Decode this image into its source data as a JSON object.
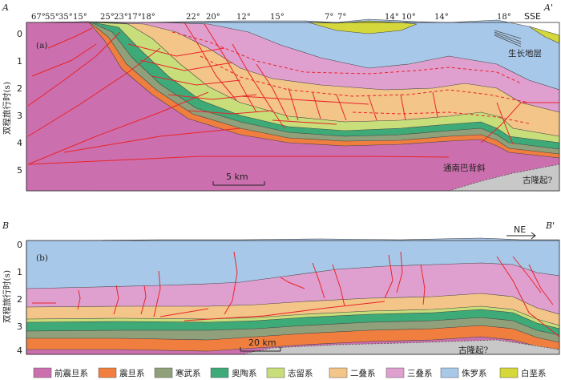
{
  "panel_a": {
    "tag": "(a)",
    "left_label": "A",
    "right_label": "A'",
    "direction": "SSE",
    "dips": [
      "67°",
      "55°",
      "35°",
      "15°",
      "25°",
      "23°",
      "17°",
      "18°",
      "22°",
      "20°",
      "12°",
      "15°",
      "7°",
      "7°",
      "14°",
      "10°",
      "14°",
      "18°"
    ],
    "y_axis_label": "双程旅行时(s)",
    "y_ticks": [
      "0",
      "1",
      "2",
      "3",
      "4",
      "5"
    ],
    "scale_bar": "5 km",
    "annotations": {
      "growth_strata": "生长地层",
      "anticline": "通南巴背斜",
      "paleo_uplift": "古隆起?"
    }
  },
  "panel_b": {
    "tag": "(b)",
    "left_label": "B",
    "right_label": "B'",
    "direction": "NE",
    "y_axis_label": "双程旅行时(s)",
    "y_ticks": [
      "0",
      "1",
      "2",
      "3",
      "4"
    ],
    "scale_bar": "20 km",
    "annotations": {
      "paleo_uplift": "古隆起?"
    }
  },
  "legend": [
    {
      "label": "前震旦系",
      "color": "#cc6fae"
    },
    {
      "label": "震旦系",
      "color": "#f07f3f"
    },
    {
      "label": "寒武系",
      "color": "#8fa07a"
    },
    {
      "label": "奥陶系",
      "color": "#3eaa78"
    },
    {
      "label": "志留系",
      "color": "#c8de7a"
    },
    {
      "label": "二叠系",
      "color": "#f3c588"
    },
    {
      "label": "三叠系",
      "color": "#e0a0cf"
    },
    {
      "label": "侏罗系",
      "color": "#a8c8ea"
    },
    {
      "label": "白垩系",
      "color": "#d4d83a"
    }
  ]
}
